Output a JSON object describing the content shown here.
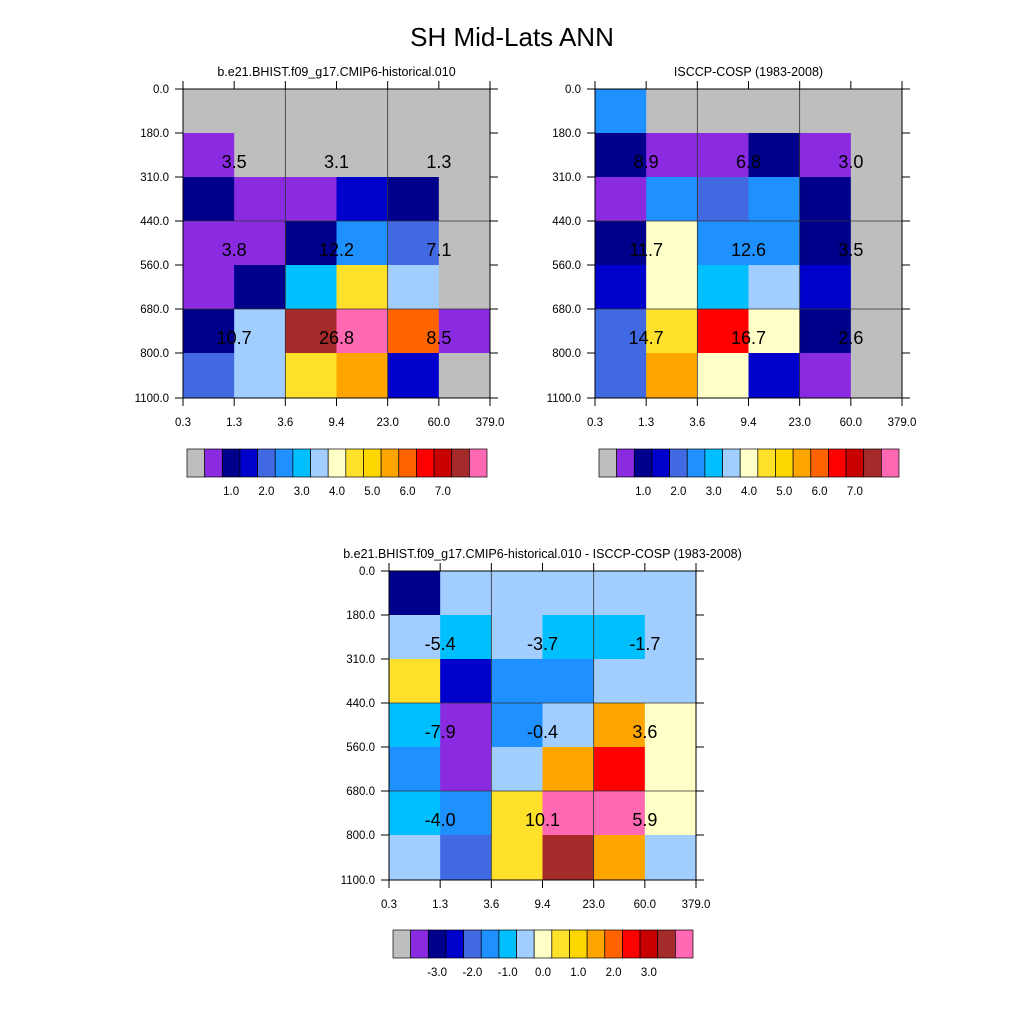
{
  "title": "SH Mid-Lats ANN",
  "colors": {
    "cb_abs": [
      "#bebebe",
      "#8a2be2",
      "#00008b",
      "#0000cd",
      "#4169e1",
      "#1e90ff",
      "#00bfff",
      "#a2cdff",
      "#ffffc8",
      "#ffe12b",
      "#ffd700",
      "#ffa500",
      "#ff6400",
      "#ff0000",
      "#c80000",
      "#a52a2a",
      "#ff69b4"
    ],
    "cb_diff": [
      "#bebebe",
      "#8a2be2",
      "#00008b",
      "#0000cd",
      "#4169e1",
      "#1e90ff",
      "#00bfff",
      "#a2cdff",
      "#ffffc8",
      "#ffe12b",
      "#ffd700",
      "#ffa500",
      "#ff6400",
      "#ff0000",
      "#c80000",
      "#a52a2a",
      "#ff69b4"
    ]
  },
  "chart_data": [
    {
      "type": "heatmap",
      "id": "model",
      "title": "b.e21.BHIST.f09_g17.CMIP6-historical.010",
      "x_ticks": [
        "0.3",
        "1.3",
        "3.6",
        "9.4",
        "23.0",
        "60.0",
        "379.0"
      ],
      "y_ticks": [
        "0.0",
        "180.0",
        "310.0",
        "440.0",
        "560.0",
        "680.0",
        "800.0",
        "1100.0"
      ],
      "grid": [
        [
          "#bebebe",
          "#bebebe",
          "#bebebe",
          "#bebebe",
          "#bebebe",
          "#bebebe"
        ],
        [
          "#8a2be2",
          "#bebebe",
          "#bebebe",
          "#bebebe",
          "#bebebe",
          "#bebebe"
        ],
        [
          "#00008b",
          "#8a2be2",
          "#8a2be2",
          "#0000cd",
          "#00008b",
          "#bebebe"
        ],
        [
          "#8a2be2",
          "#8a2be2",
          "#00008b",
          "#1e90ff",
          "#4169e1",
          "#bebebe"
        ],
        [
          "#8a2be2",
          "#00008b",
          "#00bfff",
          "#ffe12b",
          "#a2cdff",
          "#bebebe"
        ],
        [
          "#00008b",
          "#a2cdff",
          "#a52a2a",
          "#ff69b4",
          "#ff6400",
          "#8a2be2"
        ],
        [
          "#4169e1",
          "#a2cdff",
          "#ffe12b",
          "#ffa500",
          "#0000cd",
          "#bebebe"
        ]
      ],
      "box_labels": [
        [
          "3.5",
          "3.1",
          "1.3"
        ],
        [
          "3.8",
          "12.2",
          "7.1"
        ],
        [
          "10.7",
          "26.8",
          "8.5"
        ]
      ],
      "colorbar_labels": [
        "1.0",
        "2.0",
        "3.0",
        "4.0",
        "5.0",
        "6.0",
        "7.0"
      ]
    },
    {
      "type": "heatmap",
      "id": "obs",
      "title": "ISCCP-COSP (1983-2008)",
      "x_ticks": [
        "0.3",
        "1.3",
        "3.6",
        "9.4",
        "23.0",
        "60.0",
        "379.0"
      ],
      "y_ticks": [
        "0.0",
        "180.0",
        "310.0",
        "440.0",
        "560.0",
        "680.0",
        "800.0",
        "1100.0"
      ],
      "grid": [
        [
          "#1e90ff",
          "#bebebe",
          "#bebebe",
          "#bebebe",
          "#bebebe",
          "#bebebe"
        ],
        [
          "#00008b",
          "#8a2be2",
          "#8a2be2",
          "#00008b",
          "#8a2be2",
          "#bebebe"
        ],
        [
          "#8a2be2",
          "#1e90ff",
          "#4169e1",
          "#1e90ff",
          "#00008b",
          "#bebebe"
        ],
        [
          "#00008b",
          "#ffffc8",
          "#1e90ff",
          "#1e90ff",
          "#00008b",
          "#bebebe"
        ],
        [
          "#0000cd",
          "#ffffc8",
          "#00bfff",
          "#a2cdff",
          "#0000cd",
          "#bebebe"
        ],
        [
          "#4169e1",
          "#ffe12b",
          "#ff0000",
          "#ffffc8",
          "#00008b",
          "#bebebe"
        ],
        [
          "#4169e1",
          "#ffa500",
          "#ffffc8",
          "#0000cd",
          "#8a2be2",
          "#bebebe"
        ]
      ],
      "box_labels": [
        [
          "8.9",
          "6.8",
          "3.0"
        ],
        [
          "11.7",
          "12.6",
          "3.5"
        ],
        [
          "14.7",
          "16.7",
          "2.6"
        ]
      ],
      "colorbar_labels": [
        "1.0",
        "2.0",
        "3.0",
        "4.0",
        "5.0",
        "6.0",
        "7.0"
      ]
    },
    {
      "type": "heatmap",
      "id": "diff",
      "title": "b.e21.BHIST.f09_g17.CMIP6-historical.010 - ISCCP-COSP (1983-2008)",
      "x_ticks": [
        "0.3",
        "1.3",
        "3.6",
        "9.4",
        "23.0",
        "60.0",
        "379.0"
      ],
      "y_ticks": [
        "0.0",
        "180.0",
        "310.0",
        "440.0",
        "560.0",
        "680.0",
        "800.0",
        "1100.0"
      ],
      "grid": [
        [
          "#00008b",
          "#a2cdff",
          "#a2cdff",
          "#a2cdff",
          "#a2cdff",
          "#a2cdff"
        ],
        [
          "#a2cdff",
          "#00bfff",
          "#a2cdff",
          "#00bfff",
          "#00bfff",
          "#a2cdff"
        ],
        [
          "#ffe12b",
          "#0000cd",
          "#1e90ff",
          "#1e90ff",
          "#a2cdff",
          "#a2cdff"
        ],
        [
          "#00bfff",
          "#8a2be2",
          "#1e90ff",
          "#a2cdff",
          "#ffa500",
          "#ffffc8"
        ],
        [
          "#1e90ff",
          "#8a2be2",
          "#a2cdff",
          "#ffa500",
          "#ff0000",
          "#ffffc8"
        ],
        [
          "#00bfff",
          "#1e90ff",
          "#ffe12b",
          "#ff69b4",
          "#ff69b4",
          "#ffffc8"
        ],
        [
          "#a2cdff",
          "#4169e1",
          "#ffe12b",
          "#a52a2a",
          "#ffa500",
          "#a2cdff"
        ]
      ],
      "box_labels": [
        [
          "-5.4",
          "-3.7",
          "-1.7"
        ],
        [
          "-7.9",
          "-0.4",
          "3.6"
        ],
        [
          "-4.0",
          "10.1",
          "5.9"
        ]
      ],
      "colorbar_labels": [
        "-3.0",
        "-2.0",
        "-1.0",
        "0.0",
        "1.0",
        "2.0",
        "3.0"
      ]
    }
  ]
}
